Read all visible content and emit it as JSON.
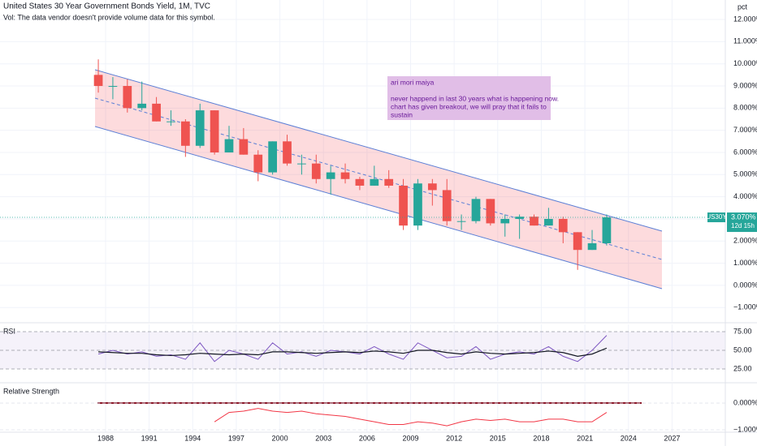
{
  "header": {
    "title": "United States 30 Year Government Bonds Yield, 1M, TVC",
    "vol": "Vol: The data vendor doesn't provide volume data for this symbol.",
    "unit": "pct"
  },
  "chart_data": [
    {
      "type": "candlestick",
      "x": [
        1987,
        1988,
        1989,
        1990,
        1991,
        1992,
        1993,
        1994,
        1995,
        1996,
        1997,
        1998,
        1999,
        2000,
        2001,
        2002,
        2003,
        2004,
        2005,
        2006,
        2007,
        2008,
        2009,
        2010,
        2011,
        2012,
        2013,
        2014,
        2015,
        2016,
        2017,
        2018,
        2019,
        2020,
        2021,
        2022
      ],
      "open": [
        9.5,
        9.0,
        9.0,
        8.0,
        8.2,
        7.4,
        7.4,
        6.3,
        7.9,
        6.0,
        6.6,
        5.9,
        5.1,
        6.5,
        5.5,
        5.5,
        4.8,
        5.1,
        4.8,
        4.5,
        4.8,
        4.5,
        2.7,
        4.6,
        4.3,
        2.9,
        2.9,
        3.9,
        2.8,
        3.0,
        3.1,
        2.7,
        3.0,
        2.4,
        1.6,
        1.9
      ],
      "high": [
        10.2,
        9.4,
        9.3,
        9.2,
        8.5,
        7.9,
        7.5,
        8.2,
        7.9,
        7.2,
        7.1,
        6.1,
        6.5,
        6.8,
        5.9,
        5.9,
        5.4,
        5.5,
        4.9,
        5.4,
        5.2,
        4.8,
        4.8,
        4.8,
        4.8,
        3.2,
        4.0,
        3.9,
        3.2,
        3.2,
        3.2,
        3.5,
        3.1,
        2.4,
        2.5,
        3.2
      ],
      "low": [
        8.7,
        8.4,
        7.8,
        7.9,
        7.4,
        7.2,
        5.8,
        6.2,
        5.9,
        6.0,
        5.9,
        4.7,
        5.0,
        5.4,
        5.0,
        4.6,
        4.1,
        4.6,
        4.3,
        4.5,
        4.4,
        2.5,
        2.5,
        3.6,
        2.7,
        2.5,
        2.8,
        2.7,
        2.2,
        2.1,
        2.7,
        2.7,
        1.9,
        0.7,
        1.6,
        1.8
      ],
      "close": [
        9.0,
        9.0,
        8.0,
        8.2,
        7.4,
        7.4,
        6.3,
        7.9,
        6.0,
        6.6,
        5.9,
        5.1,
        6.5,
        5.5,
        5.5,
        4.8,
        5.1,
        4.8,
        4.5,
        4.8,
        4.5,
        2.7,
        4.6,
        4.3,
        2.9,
        2.9,
        3.9,
        2.8,
        3.0,
        3.1,
        2.7,
        3.0,
        2.4,
        1.6,
        1.9,
        3.07
      ],
      "colors": {
        "up": "#26a69a",
        "down": "#ef5350"
      },
      "xlim": [
        1980.73,
        2030.67
      ],
      "xticks": [
        1988,
        1991,
        1994,
        1997,
        2000,
        2003,
        2006,
        2009,
        2012,
        2015,
        2018,
        2021,
        2024,
        2027
      ],
      "ylim": [
        -1.65,
        12.88
      ],
      "yticks": [
        {
          "value": 12,
          "label": "12.000%"
        },
        {
          "value": 11,
          "label": "11.000%"
        },
        {
          "value": 10,
          "label": "10.000%"
        },
        {
          "value": 9,
          "label": "9.000%"
        },
        {
          "value": 8,
          "label": "8.000%"
        },
        {
          "value": 7,
          "label": "7.000%"
        },
        {
          "value": 6,
          "label": "6.000%"
        },
        {
          "value": 5,
          "label": "5.000%"
        },
        {
          "value": 4,
          "label": "4.000%"
        },
        {
          "value": 3,
          "label": "3.000%"
        },
        {
          "value": 2,
          "label": "2.000%"
        },
        {
          "value": 1,
          "label": "1.000%"
        },
        {
          "value": 0,
          "label": "0.000%"
        },
        {
          "value": -1,
          "label": "−1.000%"
        }
      ],
      "grid": true,
      "symbol": "US30Y",
      "last_label": "3.070%",
      "countdown": "12d 15h",
      "annotation": {
        "title": "ari mori maiya",
        "lines": [
          "never happend in last 30 years what is happening now.",
          "chart has given breakout, we will pray that it fails to",
          "sustain"
        ]
      }
    },
    {
      "type": "line",
      "title": "RSI",
      "x": [
        1987,
        1988,
        1989,
        1990,
        1991,
        1992,
        1993,
        1994,
        1995,
        1996,
        1997,
        1998,
        1999,
        2000,
        2001,
        2002,
        2003,
        2004,
        2005,
        2006,
        2007,
        2008,
        2009,
        2010,
        2011,
        2012,
        2013,
        2014,
        2015,
        2016,
        2017,
        2018,
        2019,
        2020,
        2021,
        2022
      ],
      "series": [
        {
          "color": "#7e57c2",
          "values": [
            45,
            50,
            45,
            48,
            42,
            44,
            38,
            60,
            35,
            50,
            45,
            38,
            60,
            45,
            48,
            42,
            50,
            48,
            45,
            55,
            45,
            38,
            60,
            50,
            40,
            42,
            55,
            38,
            45,
            48,
            45,
            55,
            42,
            35,
            50,
            70
          ]
        },
        {
          "color": "#131722",
          "values": [
            48,
            47,
            46,
            46,
            44,
            43,
            44,
            46,
            45,
            44,
            45,
            44,
            48,
            48,
            47,
            46,
            47,
            48,
            47,
            49,
            48,
            46,
            50,
            50,
            47,
            45,
            48,
            46,
            45,
            46,
            47,
            49,
            47,
            42,
            45,
            53
          ]
        }
      ],
      "ylim": [
        8.7,
        84.8
      ],
      "yticks": [
        {
          "value": 75,
          "label": "75.00"
        },
        {
          "value": 50,
          "label": "50.00"
        },
        {
          "value": 25,
          "label": "25.00"
        }
      ]
    },
    {
      "type": "line",
      "title": "Relative Strength",
      "x": [
        1987,
        1988,
        1989,
        1990,
        1991,
        1992,
        1993,
        1994,
        1995,
        1996,
        1997,
        1998,
        1999,
        2000,
        2001,
        2002,
        2003,
        2004,
        2005,
        2006,
        2007,
        2008,
        2009,
        2010,
        2011,
        2012,
        2013,
        2014,
        2015,
        2016,
        2017,
        2018,
        2019,
        2020,
        2021,
        2022
      ],
      "series": [
        {
          "color": "#f23645",
          "values": [
            null,
            null,
            null,
            null,
            null,
            null,
            null,
            null,
            -0.7,
            -0.35,
            -0.3,
            -0.2,
            -0.3,
            -0.35,
            -0.3,
            -0.4,
            -0.45,
            -0.5,
            -0.6,
            -0.7,
            -0.8,
            -0.8,
            -0.7,
            -0.75,
            -0.85,
            -0.7,
            -0.6,
            -0.65,
            -0.6,
            -0.7,
            -0.7,
            -0.6,
            -0.6,
            -0.7,
            -0.7,
            -0.35
          ]
        }
      ],
      "ylim": [
        -1.09,
        0.73
      ],
      "yticks": [
        {
          "value": 0,
          "label": "0.000%"
        },
        {
          "value": -1,
          "label": "−1.000%"
        }
      ]
    }
  ]
}
